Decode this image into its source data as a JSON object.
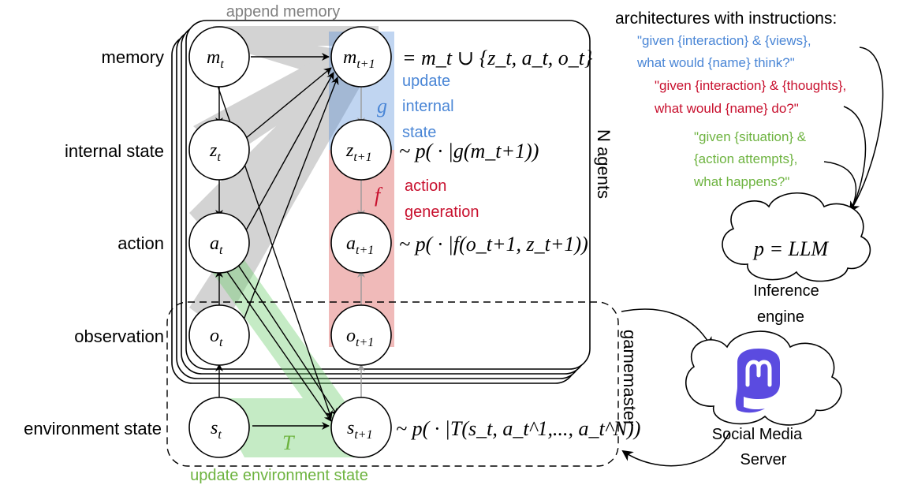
{
  "row_labels": {
    "memory": "memory",
    "internal_state": "internal state",
    "action": "action",
    "observation": "observation",
    "environment_state": "environment state"
  },
  "nodes": {
    "m_t": {
      "base": "m",
      "sub": "t"
    },
    "z_t": {
      "base": "z",
      "sub": "t"
    },
    "a_t": {
      "base": "a",
      "sub": "t"
    },
    "o_t": {
      "base": "o",
      "sub": "t"
    },
    "s_t": {
      "base": "s",
      "sub": "t"
    },
    "m_t1": {
      "base": "m",
      "sub": "t+1"
    },
    "z_t1": {
      "base": "z",
      "sub": "t+1"
    },
    "a_t1": {
      "base": "a",
      "sub": "t+1"
    },
    "o_t1": {
      "base": "o",
      "sub": "t+1"
    },
    "s_t1": {
      "base": "s",
      "sub": "t+1"
    }
  },
  "annotations": {
    "append_memory": "append memory",
    "update_internal_state": [
      "update",
      "internal",
      "state"
    ],
    "g": "g",
    "f": "f",
    "action_generation": [
      "action",
      "generation"
    ],
    "T": "T",
    "update_environment_state": "update environment state",
    "n_agents": "N agents",
    "gamemaster": "gamemaster"
  },
  "equations": {
    "memory_eq": "= m_t ∪ {z_t, a_t, o_t}",
    "state_eq": "~ p( · |g(m_t+1))",
    "action_eq": "~ p( · |f(o_t+1, z_t+1))",
    "env_eq": "~ p( · |T(s_t, a_t^1,..., a_t^N))"
  },
  "architectures": {
    "title": "architectures with instructions:",
    "blue_prompt": [
      "\"given {interaction} & {views},",
      "what would {name} think?\""
    ],
    "red_prompt": [
      "\"given {interaction} & {thoughts},",
      "what would {name} do?\""
    ],
    "green_prompt": [
      "\"given {situation} &",
      "{action attempts},",
      "what happens?\""
    ],
    "llm": "p = LLM",
    "inference_engine": [
      "Inference",
      "engine"
    ],
    "social_media": [
      "Social Media",
      "Server"
    ]
  },
  "colors": {
    "blue": "#4a86d6",
    "red": "#c8102e",
    "green": "#6db33f",
    "gray_band": "#bdbdbd",
    "mastodon": "#5b4be0"
  }
}
